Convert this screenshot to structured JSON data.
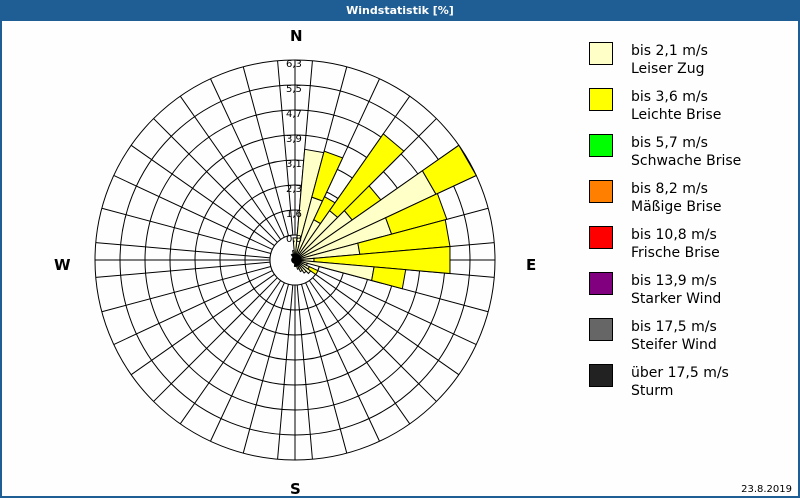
{
  "window": {
    "title": "Windstatistik [%]"
  },
  "compass": {
    "n": "N",
    "e": "E",
    "s": "S",
    "w": "W"
  },
  "footer": {
    "date": "23.8.2019"
  },
  "legend": [
    {
      "range": "bis 2,1 m/s",
      "name": "Leiser Zug",
      "color": "#ffffc8"
    },
    {
      "range": "bis 3,6 m/s",
      "name": "Leichte Brise",
      "color": "#ffff00"
    },
    {
      "range": "bis 5,7 m/s",
      "name": "Schwache Brise",
      "color": "#00ff00"
    },
    {
      "range": "bis 8,2 m/s",
      "name": "Mäßige Brise",
      "color": "#ff8000"
    },
    {
      "range": "bis 10,8 m/s",
      "name": "Frische Brise",
      "color": "#ff0000"
    },
    {
      "range": "bis 13,9 m/s",
      "name": "Starker Wind",
      "color": "#800080"
    },
    {
      "range": "bis 17,5 m/s",
      "name": "Steifer Wind",
      "color": "#666666"
    },
    {
      "range": "über 17,5 m/s",
      "name": "Sturm",
      "color": "#222222"
    }
  ],
  "chart_data": {
    "type": "wind-rose",
    "title": "Windstatistik [%]",
    "unit": "%",
    "ring_labels": [
      "0,8",
      "1,6",
      "2,3",
      "3,1",
      "3,9",
      "4,7",
      "5,5",
      "6,3"
    ],
    "rmax": 6.3,
    "sector_width_deg": 10,
    "directions_deg": [
      10,
      20,
      30,
      40,
      50,
      60,
      70,
      80,
      90,
      100,
      110,
      120,
      130,
      140,
      150,
      160,
      170,
      180,
      190,
      200,
      210,
      220,
      230,
      240,
      250,
      260,
      270,
      280,
      290,
      300,
      310,
      320,
      330,
      340,
      350,
      360
    ],
    "series": [
      {
        "name": "bis 2,1 m/s (Leiser Zug)",
        "color": "#ffffc8",
        "values": [
          3.5,
          2.05,
          1.4,
          1.9,
          2.2,
          4.9,
          3.15,
          2.05,
          0.6,
          2.5,
          0.4,
          0.5,
          0.6,
          0.5,
          0.4,
          0.3,
          0.2,
          0.2,
          0.1,
          0.1,
          0.1,
          0.1,
          0.1,
          0.1,
          0.1,
          0.1,
          0.1,
          0.1,
          0.1,
          0.1,
          0.1,
          0.1,
          0.2,
          0.2,
          0.3,
          0.7
        ]
      },
      {
        "name": "bis 3,6 m/s (Leichte Brise)",
        "color": "#ffff00",
        "values": [
          0,
          1.5,
          0.8,
          2.95,
          1.1,
          1.4,
          1.8,
          2.85,
          4.3,
          1.0,
          0,
          0.3,
          0,
          0,
          0,
          0,
          0,
          0,
          0,
          0,
          0,
          0,
          0,
          0,
          0,
          0,
          0,
          0,
          0,
          0,
          0,
          0,
          0,
          0,
          0,
          0
        ]
      }
    ],
    "calm_radius_label": "",
    "legend_position": "right"
  }
}
